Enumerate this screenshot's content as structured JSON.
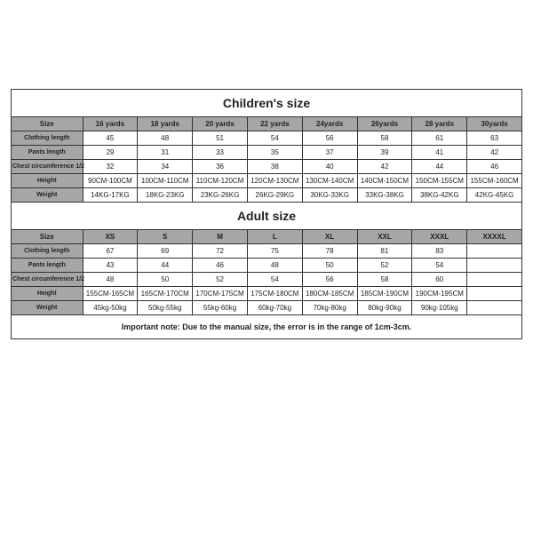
{
  "colors": {
    "border": "#333333",
    "header_bg": "#a6a6a6",
    "text": "#222222",
    "background": "#ffffff"
  },
  "children": {
    "title": "Children's size",
    "headers": [
      "Size",
      "16 yards",
      "18 yards",
      "20 yards",
      "22 yards",
      "24yards",
      "26yards",
      "28 yards",
      "30yards"
    ],
    "rows": [
      {
        "label": "Clothing length",
        "values": [
          "45",
          "48",
          "51",
          "54",
          "56",
          "58",
          "61",
          "63"
        ]
      },
      {
        "label": "Pants length",
        "values": [
          "29",
          "31",
          "33",
          "35",
          "37",
          "39",
          "41",
          "42"
        ]
      },
      {
        "label": "Chest circumference 1/2",
        "values": [
          "32",
          "34",
          "36",
          "38",
          "40",
          "42",
          "44",
          "46"
        ]
      },
      {
        "label": "Height",
        "values": [
          "90CM-100CM",
          "100CM-110CM",
          "110CM-120CM",
          "120CM-130CM",
          "130CM-140CM",
          "140CM-150CM",
          "150CM-155CM",
          "155CM-160CM"
        ]
      },
      {
        "label": "Weight",
        "values": [
          "14KG-17KG",
          "18KG-23KG",
          "23KG-26KG",
          "26KG-29KG",
          "30KG-33KG",
          "33KG-38KG",
          "38KG-42KG",
          "42KG-45KG"
        ]
      }
    ]
  },
  "adult": {
    "title": "Adult size",
    "headers": [
      "Size",
      "XS",
      "S",
      "M",
      "L",
      "XL",
      "XXL",
      "XXXL",
      "XXXXL"
    ],
    "rows": [
      {
        "label": "Clothing length",
        "values": [
          "67",
          "69",
          "72",
          "75",
          "78",
          "81",
          "83",
          ""
        ]
      },
      {
        "label": "Pants length",
        "values": [
          "43",
          "44",
          "46",
          "48",
          "50",
          "52",
          "54",
          ""
        ]
      },
      {
        "label": "Chest circumference 1/2",
        "values": [
          "48",
          "50",
          "52",
          "54",
          "56",
          "58",
          "60",
          ""
        ]
      },
      {
        "label": "Height",
        "values": [
          "155CM-165CM",
          "165CM-170CM",
          "170CM-175CM",
          "175CM-180CM",
          "180CM-185CM",
          "185CM-190CM",
          "190CM-195CM",
          ""
        ]
      },
      {
        "label": "Weight",
        "values": [
          "45kg-50kg",
          "50kg-55kg",
          "55kg-60kg",
          "60kg-70kg",
          "70kg-80kg",
          "80kg-90kg",
          "90kg-105kg",
          ""
        ]
      }
    ]
  },
  "note": "Important note: Due to the manual size, the error is in the range of 1cm-3cm."
}
